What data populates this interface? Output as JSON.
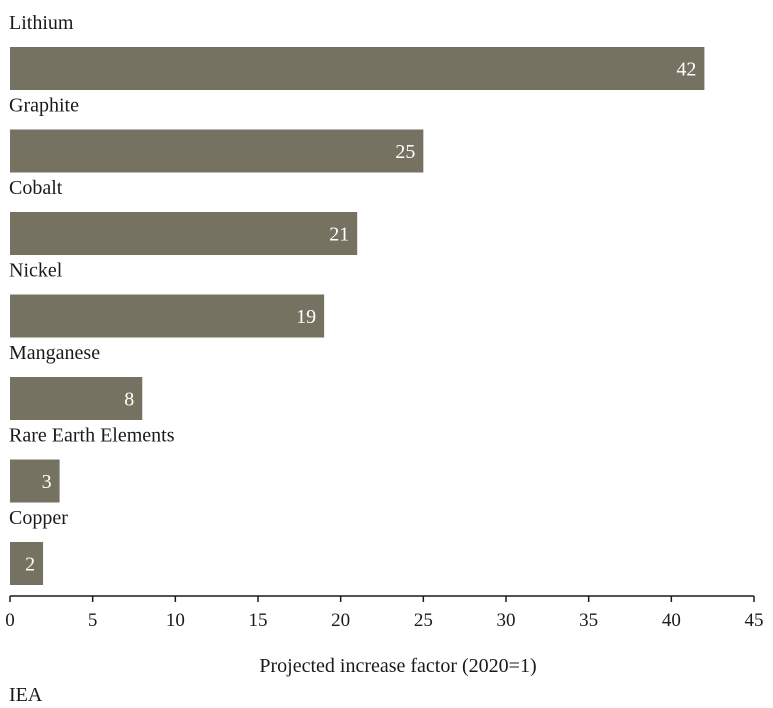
{
  "chart_data": {
    "type": "bar",
    "orientation": "horizontal",
    "categories": [
      "Lithium",
      "Graphite",
      "Cobalt",
      "Nickel",
      "Manganese",
      "Rare Earth Elements",
      "Copper"
    ],
    "values": [
      42,
      25,
      21,
      19,
      8,
      3,
      2
    ],
    "bar_color": "#767262",
    "xlim": [
      0,
      45
    ],
    "xticks": [
      0,
      5,
      10,
      15,
      20,
      25,
      30,
      35,
      40,
      45
    ],
    "xlabel": "Projected increase factor (2020=1)",
    "grid": false
  },
  "source": "IEA"
}
